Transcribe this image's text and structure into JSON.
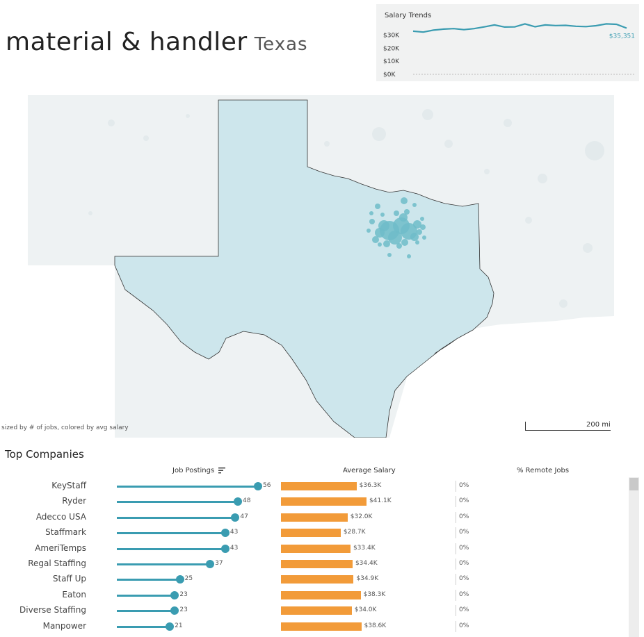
{
  "header": {
    "title": "material & handler",
    "state": "Texas"
  },
  "salary_trends": {
    "title": "Salary Trends",
    "ticks": [
      "$30K",
      "$20K",
      "$10K",
      "$0K"
    ],
    "last_label": "$35,351",
    "chart_data": {
      "type": "line",
      "ylim": [
        0,
        42000
      ],
      "y_ticks": [
        0,
        10000,
        20000,
        30000
      ],
      "series": [
        {
          "values": [
            33000,
            32300,
            33800,
            34600,
            35000,
            34200,
            35000,
            36300,
            37800,
            36200,
            36300,
            38600,
            36400,
            37800,
            37300,
            37500,
            36800,
            36500,
            37200,
            38600,
            38300,
            35351
          ]
        }
      ],
      "line_color": "#3a9cb1"
    }
  },
  "map": {
    "caption": "sized by # of jobs, colored by avg salary",
    "scale_label": "200 mi",
    "state_fill": "#cde6ec",
    "marker_color": "#6fbcc9"
  },
  "companies": {
    "title": "Top Companies",
    "col_postings": "Job Postings",
    "col_salary": "Average Salary",
    "col_remote": "% Remote Jobs",
    "max_postings": 56,
    "max_salary": 41.1,
    "rows": [
      {
        "name": "KeyStaff",
        "postings": 56,
        "salary": 36.3,
        "salary_label": "$36.3K",
        "remote": "0%"
      },
      {
        "name": "Ryder",
        "postings": 48,
        "salary": 41.1,
        "salary_label": "$41.1K",
        "remote": "0%"
      },
      {
        "name": "Adecco USA",
        "postings": 47,
        "salary": 32.0,
        "salary_label": "$32.0K",
        "remote": "0%"
      },
      {
        "name": "Staffmark",
        "postings": 43,
        "salary": 28.7,
        "salary_label": "$28.7K",
        "remote": "0%"
      },
      {
        "name": "AmeriTemps",
        "postings": 43,
        "salary": 33.4,
        "salary_label": "$33.4K",
        "remote": "0%"
      },
      {
        "name": "Regal Staffing",
        "postings": 37,
        "salary": 34.4,
        "salary_label": "$34.4K",
        "remote": "0%"
      },
      {
        "name": "Staff Up",
        "postings": 25,
        "salary": 34.9,
        "salary_label": "$34.9K",
        "remote": "0%"
      },
      {
        "name": "Eaton",
        "postings": 23,
        "salary": 38.3,
        "salary_label": "$38.3K",
        "remote": "0%"
      },
      {
        "name": "Diverse Staffing",
        "postings": 23,
        "salary": 34.0,
        "salary_label": "$34.0K",
        "remote": "0%"
      },
      {
        "name": "Manpower",
        "postings": 21,
        "salary": 38.6,
        "salary_label": "$38.6K",
        "remote": "0%"
      }
    ]
  }
}
